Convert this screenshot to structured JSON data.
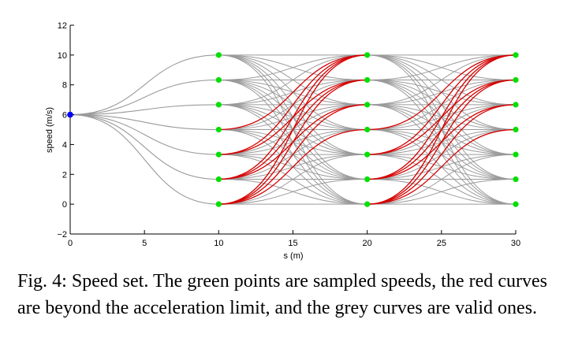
{
  "caption": "Fig. 4: Speed set. The green points are sampled speeds, the red curves are beyond the acceleration limit, and the grey curves are valid ones.",
  "colors": {
    "valid_curve": "#9a9a9a",
    "invalid_curve": "#d40000",
    "sampled_point": "#00e000",
    "start_point": "#0000ff",
    "axis": "#000000"
  },
  "chart_data": {
    "type": "line",
    "title": "",
    "xlabel": "s (m)",
    "ylabel": "speed (m/s)",
    "xlim": [
      0,
      30
    ],
    "ylim": [
      -2,
      12
    ],
    "x_ticks": [
      0,
      5,
      10,
      15,
      20,
      25,
      30
    ],
    "x_tick_labels": [
      "0",
      "5",
      "10",
      "15",
      "20",
      "25",
      "30"
    ],
    "y_ticks": [
      -2,
      0,
      2,
      4,
      6,
      8,
      10,
      12
    ],
    "y_tick_labels": [
      "−2",
      "0",
      "2",
      "4",
      "6",
      "8",
      "10",
      "12"
    ],
    "grid": false,
    "start_point": {
      "s": 0,
      "speed": 6
    },
    "sample_stations": [
      10,
      20,
      30
    ],
    "sampled_speeds": [
      0,
      1.67,
      3.33,
      5,
      6.67,
      8.33,
      10
    ],
    "curves_start": [
      {
        "s0": 0,
        "v0": 6,
        "s1": 10,
        "v1": 0,
        "valid": true
      },
      {
        "s0": 0,
        "v0": 6,
        "s1": 10,
        "v1": 1.67,
        "valid": true
      },
      {
        "s0": 0,
        "v0": 6,
        "s1": 10,
        "v1": 3.33,
        "valid": true
      },
      {
        "s0": 0,
        "v0": 6,
        "s1": 10,
        "v1": 5,
        "valid": true
      },
      {
        "s0": 0,
        "v0": 6,
        "s1": 10,
        "v1": 6.67,
        "valid": true
      },
      {
        "s0": 0,
        "v0": 6,
        "s1": 10,
        "v1": 8.33,
        "valid": true
      },
      {
        "s0": 0,
        "v0": 6,
        "s1": 10,
        "v1": 10,
        "valid": true
      }
    ],
    "invalid_rule": "curves between consecutive stations whose speed increase is 5 m/s or more are beyond the acceleration limit (red); all others are valid (grey)",
    "invalid_min_speed_increase": 5
  }
}
